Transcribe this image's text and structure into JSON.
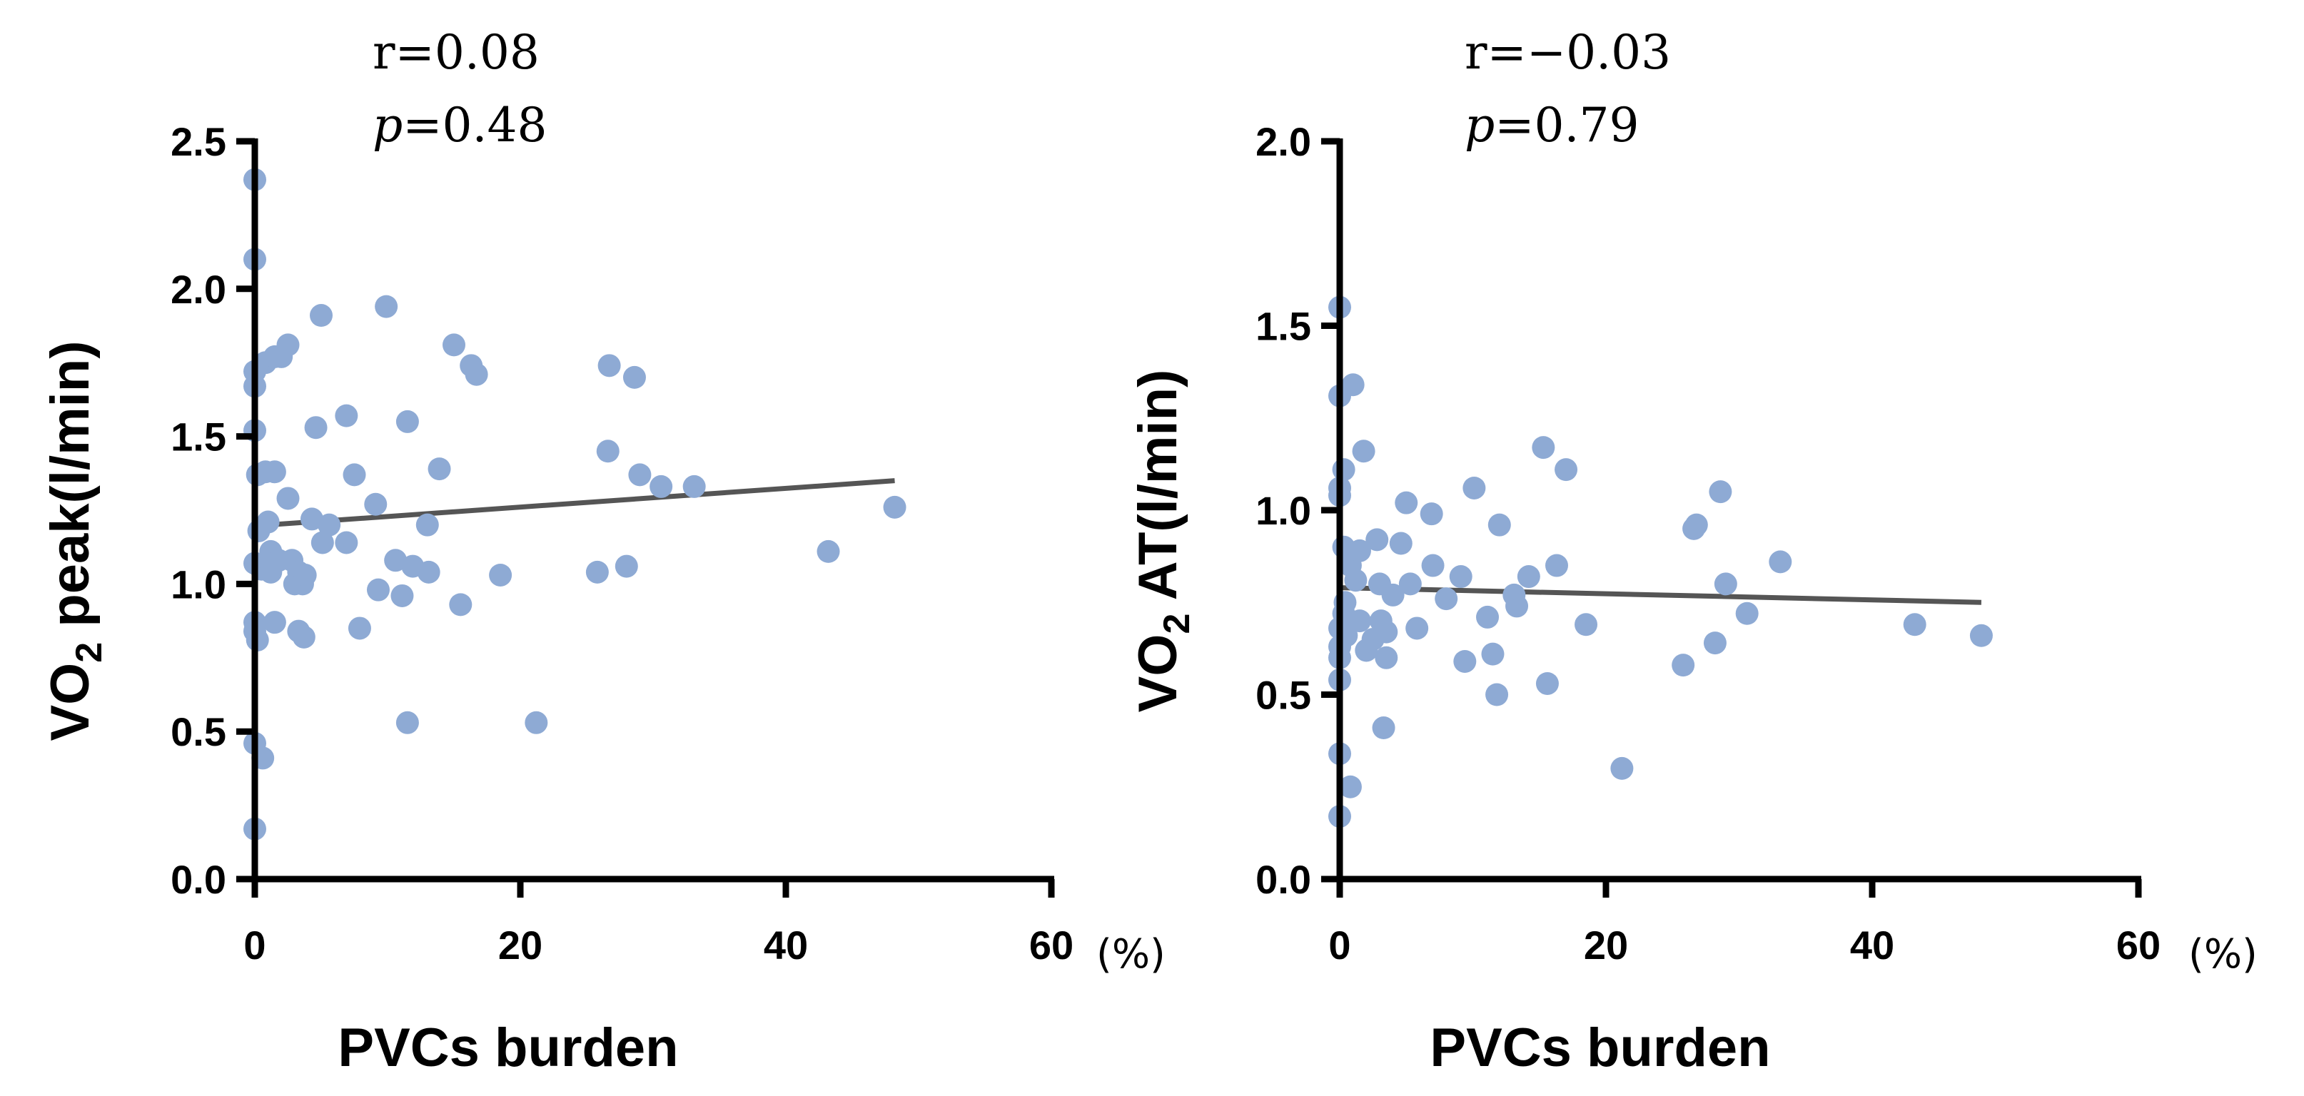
{
  "colors": {
    "points": "#8eaad4",
    "fit_line": "#555555",
    "axis": "#000000"
  },
  "chart_data": [
    {
      "type": "scatter",
      "title": "",
      "annotation": {
        "r_prefix": "r=",
        "r_value": "0.08",
        "p_letter": "p",
        "p_value": "=0.48"
      },
      "xlabel": "PVCs burden",
      "x_unit": "(%)",
      "ylabel": {
        "prefix": "VO",
        "sub": "2",
        "suffix": " peak(l/min)"
      },
      "xlim": [
        0,
        60
      ],
      "ylim": [
        0,
        2.5
      ],
      "x_ticks": [
        "0",
        "20",
        "40",
        "60"
      ],
      "x_tick_values": [
        0,
        20,
        40,
        60
      ],
      "y_ticks": [
        "0.0",
        "0.5",
        "1.0",
        "1.5",
        "2.0",
        "2.5"
      ],
      "y_tick_values": [
        0,
        0.5,
        1.0,
        1.5,
        2.0,
        2.5
      ],
      "fit_line": {
        "x": [
          1,
          48.2
        ],
        "y": [
          1.2,
          1.35
        ]
      },
      "points": [
        [
          0,
          2.37
        ],
        [
          0,
          2.1
        ],
        [
          0,
          1.72
        ],
        [
          0,
          1.67
        ],
        [
          0,
          1.52
        ],
        [
          0.2,
          1.37
        ],
        [
          0.3,
          1.18
        ],
        [
          0,
          1.07
        ],
        [
          0.5,
          1.05
        ],
        [
          0,
          0.87
        ],
        [
          0,
          0.84
        ],
        [
          0.2,
          0.81
        ],
        [
          0,
          0.46
        ],
        [
          0.6,
          0.41
        ],
        [
          0,
          0.17
        ],
        [
          0.8,
          1.75
        ],
        [
          1.5,
          1.77
        ],
        [
          2.0,
          1.77
        ],
        [
          2.5,
          1.81
        ],
        [
          0.8,
          1.38
        ],
        [
          1.5,
          1.38
        ],
        [
          1.0,
          1.21
        ],
        [
          1.2,
          1.11
        ],
        [
          1.8,
          1.08
        ],
        [
          1.2,
          1.04
        ],
        [
          1.5,
          0.87
        ],
        [
          2.5,
          1.29
        ],
        [
          2.8,
          1.08
        ],
        [
          3.0,
          1.0
        ],
        [
          3.3,
          1.04
        ],
        [
          3.6,
          1.0
        ],
        [
          3.8,
          1.03
        ],
        [
          3.3,
          0.84
        ],
        [
          3.7,
          0.82
        ],
        [
          4.3,
          1.22
        ],
        [
          4.6,
          1.53
        ],
        [
          5.0,
          1.91
        ],
        [
          5.1,
          1.14
        ],
        [
          5.6,
          1.2
        ],
        [
          6.9,
          1.57
        ],
        [
          6.9,
          1.14
        ],
        [
          7.5,
          1.37
        ],
        [
          7.9,
          0.85
        ],
        [
          9.1,
          1.27
        ],
        [
          9.3,
          0.98
        ],
        [
          9.9,
          1.94
        ],
        [
          10.6,
          1.08
        ],
        [
          11.1,
          0.96
        ],
        [
          11.5,
          1.55
        ],
        [
          11.5,
          0.53
        ],
        [
          11.9,
          1.06
        ],
        [
          13.0,
          1.2
        ],
        [
          13.1,
          1.04
        ],
        [
          13.9,
          1.39
        ],
        [
          15.0,
          1.81
        ],
        [
          15.5,
          0.93
        ],
        [
          16.3,
          1.74
        ],
        [
          16.7,
          1.71
        ],
        [
          18.5,
          1.03
        ],
        [
          21.2,
          0.53
        ],
        [
          25.8,
          1.04
        ],
        [
          26.6,
          1.45
        ],
        [
          26.7,
          1.74
        ],
        [
          28.0,
          1.06
        ],
        [
          28.6,
          1.7
        ],
        [
          29.0,
          1.37
        ],
        [
          30.6,
          1.33
        ],
        [
          33.1,
          1.33
        ],
        [
          43.2,
          1.11
        ],
        [
          48.2,
          1.26
        ]
      ]
    },
    {
      "type": "scatter",
      "title": "",
      "annotation": {
        "r_prefix": "r=",
        "r_value": "−0.03",
        "p_letter": "p",
        "p_value": "=0.79"
      },
      "xlabel": "PVCs burden",
      "x_unit": "(%)",
      "ylabel": {
        "prefix": "VO",
        "sub": "2",
        "suffix": " AT(l/min)"
      },
      "xlim": [
        0,
        60
      ],
      "ylim": [
        0,
        2.0
      ],
      "x_ticks": [
        "0",
        "20",
        "40",
        "60"
      ],
      "x_tick_values": [
        0,
        20,
        40,
        60
      ],
      "y_ticks": [
        "0.0",
        "0.5",
        "1.0",
        "1.5",
        "2.0"
      ],
      "y_tick_values": [
        0,
        0.5,
        1.0,
        1.5,
        2.0
      ],
      "fit_line": {
        "x": [
          0,
          48.2
        ],
        "y": [
          0.79,
          0.75
        ]
      },
      "points": [
        [
          0,
          1.55
        ],
        [
          0,
          1.31
        ],
        [
          1.0,
          1.34
        ],
        [
          0.3,
          1.11
        ],
        [
          1.8,
          1.16
        ],
        [
          0,
          1.06
        ],
        [
          0,
          1.04
        ],
        [
          0.3,
          0.9
        ],
        [
          0.8,
          0.85
        ],
        [
          0.4,
          0.75
        ],
        [
          0.3,
          0.72
        ],
        [
          0,
          0.68
        ],
        [
          0.5,
          0.66
        ],
        [
          0,
          0.63
        ],
        [
          0,
          0.6
        ],
        [
          0,
          0.54
        ],
        [
          0,
          0.34
        ],
        [
          0.8,
          0.25
        ],
        [
          0,
          0.17
        ],
        [
          1.5,
          0.89
        ],
        [
          1.2,
          0.81
        ],
        [
          1.5,
          0.7
        ],
        [
          2.0,
          0.62
        ],
        [
          2.5,
          0.65
        ],
        [
          2.8,
          0.92
        ],
        [
          3.0,
          0.8
        ],
        [
          3.1,
          0.7
        ],
        [
          3.5,
          0.6
        ],
        [
          3.3,
          0.41
        ],
        [
          3.5,
          0.67
        ],
        [
          4.0,
          0.77
        ],
        [
          4.6,
          0.91
        ],
        [
          5.0,
          1.02
        ],
        [
          5.3,
          0.8
        ],
        [
          5.8,
          0.68
        ],
        [
          6.9,
          0.99
        ],
        [
          7.0,
          0.85
        ],
        [
          8.0,
          0.76
        ],
        [
          9.1,
          0.82
        ],
        [
          9.4,
          0.59
        ],
        [
          10.1,
          1.06
        ],
        [
          11.1,
          0.71
        ],
        [
          11.5,
          0.61
        ],
        [
          11.8,
          0.5
        ],
        [
          12.0,
          0.96
        ],
        [
          13.1,
          0.77
        ],
        [
          13.3,
          0.74
        ],
        [
          14.2,
          0.82
        ],
        [
          15.3,
          1.17
        ],
        [
          15.6,
          0.53
        ],
        [
          16.3,
          0.85
        ],
        [
          17.0,
          1.11
        ],
        [
          18.5,
          0.69
        ],
        [
          21.2,
          0.3
        ],
        [
          25.8,
          0.58
        ],
        [
          26.6,
          0.95
        ],
        [
          26.8,
          0.96
        ],
        [
          28.2,
          0.64
        ],
        [
          28.6,
          1.05
        ],
        [
          29.0,
          0.8
        ],
        [
          30.6,
          0.72
        ],
        [
          33.1,
          0.86
        ],
        [
          43.2,
          0.69
        ],
        [
          48.2,
          0.66
        ]
      ]
    }
  ]
}
